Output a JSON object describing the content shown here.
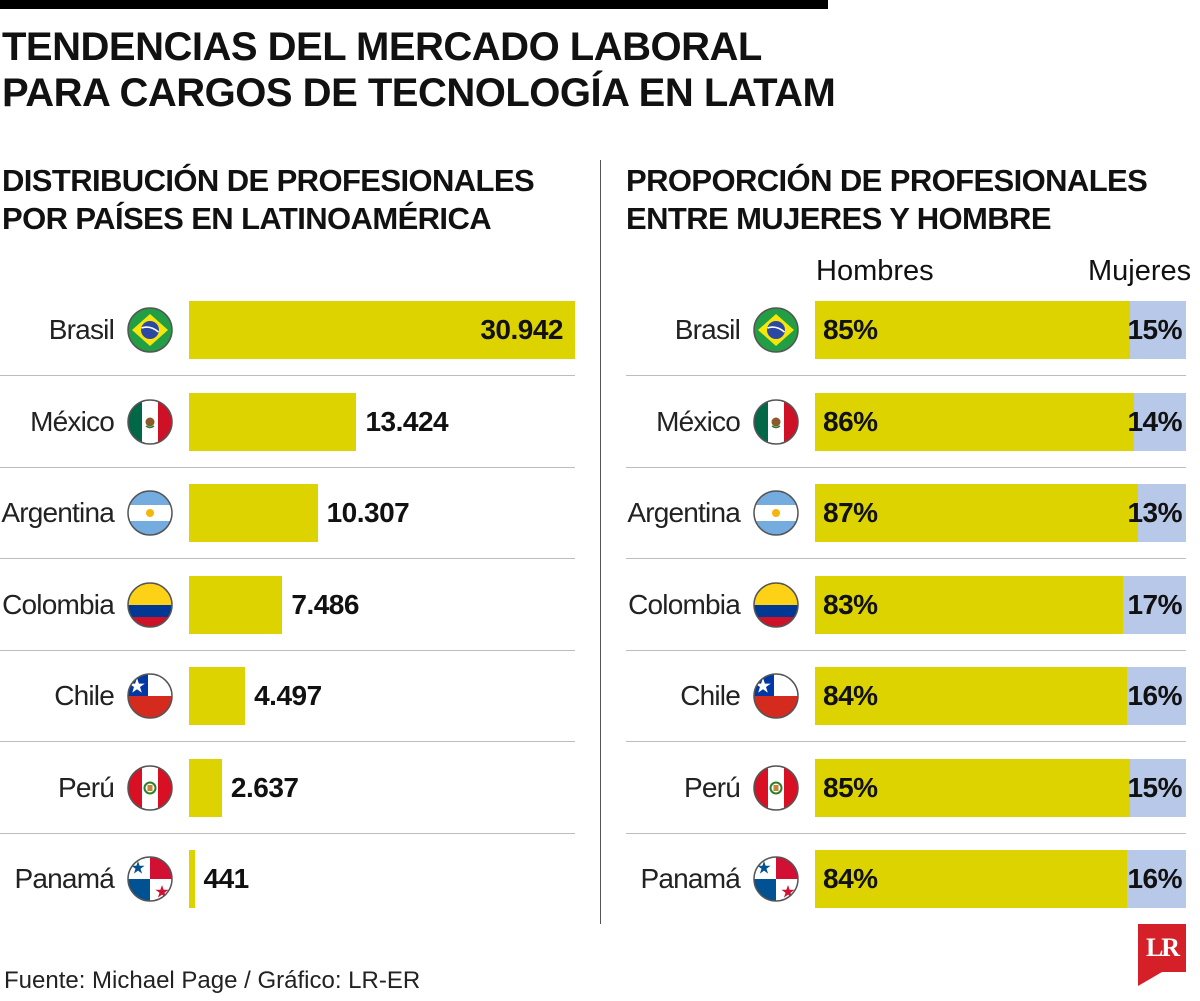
{
  "header": {
    "title_line1": "TENDENCIAS DEL MERCADO LABORAL",
    "title_line2": "PARA CARGOS DE TECNOLOGÍA EN LATAM"
  },
  "footer": {
    "source": "Fuente: Michael Page / Gráfico: LR-ER",
    "logo": "LR"
  },
  "colors": {
    "yellow": "#dcd300",
    "blue": "#b7c8e8"
  },
  "chart_data": [
    {
      "type": "bar",
      "title_line1": "DISTRIBUCIÓN DE PROFESIONALES",
      "title_line2": "POR PAÍSES EN LATINOAMÉRICA",
      "categories": [
        "Brasil",
        "México",
        "Argentina",
        "Colombia",
        "Chile",
        "Perú",
        "Panamá"
      ],
      "flags": [
        "brazil-flag-icon",
        "mexico-flag-icon",
        "argentina-flag-icon",
        "colombia-flag-icon",
        "chile-flag-icon",
        "peru-flag-icon",
        "panama-flag-icon"
      ],
      "values": [
        30942,
        13424,
        10307,
        7486,
        4497,
        2637,
        441
      ],
      "value_labels": [
        "30.942",
        "13.424",
        "10.307",
        "7.486",
        "4.497",
        "2.637",
        "441"
      ],
      "xlim": [
        0,
        30942
      ],
      "orientation": "horizontal"
    },
    {
      "type": "bar",
      "stacked": true,
      "title_line1": "PROPORCIÓN DE PROFESIONALES",
      "title_line2": "ENTRE MUJERES Y HOMBRE",
      "categories": [
        "Brasil",
        "México",
        "Argentina",
        "Colombia",
        "Chile",
        "Perú",
        "Panamá"
      ],
      "series": [
        {
          "name": "Hombres",
          "values": [
            85,
            86,
            87,
            83,
            84,
            85,
            84
          ],
          "labels": [
            "85%",
            "86%",
            "87%",
            "83%",
            "84%",
            "85%",
            "84%"
          ]
        },
        {
          "name": "Mujeres",
          "values": [
            15,
            14,
            13,
            17,
            16,
            15,
            16
          ],
          "labels": [
            "15%",
            "14%",
            "13%",
            "17%",
            "16%",
            "15%",
            "16%"
          ]
        }
      ],
      "xlim": [
        0,
        100
      ],
      "orientation": "horizontal"
    }
  ]
}
